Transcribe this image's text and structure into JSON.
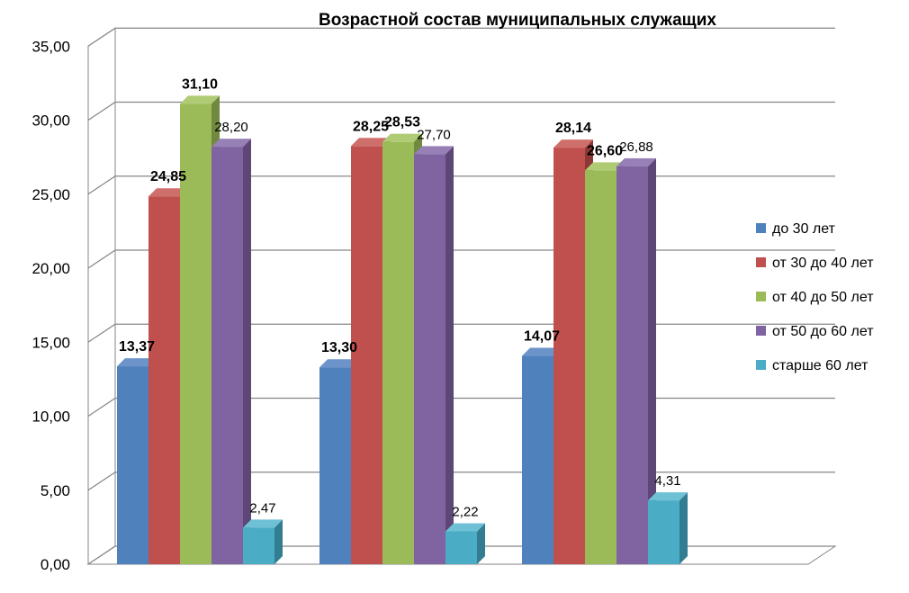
{
  "chart_data": {
    "type": "bar",
    "title": "Возрастной состав муниципальных служащих",
    "categories": [
      "",
      "",
      ""
    ],
    "ylim": [
      0,
      35
    ],
    "yticks": [
      "0,00",
      "5,00",
      "10,00",
      "15,00",
      "20,00",
      "25,00",
      "30,00",
      "35,00"
    ],
    "grid": true,
    "legend_position": "right",
    "series": [
      {
        "name": "до 30 лет",
        "color": "#4F81BD",
        "side": "#355F91",
        "top": "#6C94CB",
        "values": [
          13.37,
          13.3,
          14.07
        ],
        "labels": [
          "13,37",
          "13,30",
          "14,07"
        ],
        "label_bold": [
          true,
          true,
          true
        ]
      },
      {
        "name": "от 30 до 40 лет",
        "color": "#C0504D",
        "side": "#8C3836",
        "top": "#CF6F6C",
        "values": [
          24.85,
          28.25,
          28.14
        ],
        "labels": [
          "24,85",
          "28,25",
          "28,14"
        ],
        "label_bold": [
          true,
          true,
          true
        ]
      },
      {
        "name": "от 40 до 50 лет",
        "color": "#9BBB59",
        "side": "#71893F",
        "top": "#AFCB74",
        "values": [
          31.1,
          28.53,
          26.6
        ],
        "labels": [
          "31,10",
          "28,53",
          "26,60"
        ],
        "label_bold": [
          true,
          true,
          true
        ]
      },
      {
        "name": "от 50 до 60 лет",
        "color": "#8064A2",
        "side": "#5C4776",
        "top": "#9680B5",
        "values": [
          28.2,
          27.7,
          26.88
        ],
        "labels": [
          "28,20",
          "27,70",
          "26,88"
        ],
        "label_bold": [
          false,
          false,
          false
        ]
      },
      {
        "name": "старше 60 лет",
        "color": "#4BACC6",
        "side": "#327D91",
        "top": "#6EC0D5",
        "values": [
          2.47,
          2.22,
          4.31
        ],
        "labels": [
          "2,47",
          "2,22",
          "4,31"
        ],
        "label_bold": [
          false,
          false,
          false
        ]
      }
    ]
  }
}
